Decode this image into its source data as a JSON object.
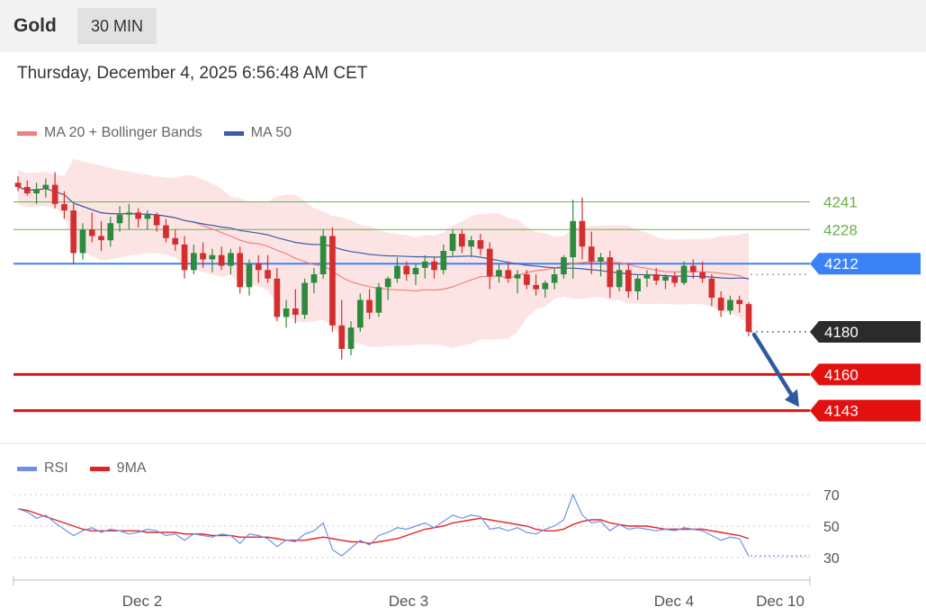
{
  "header": {
    "instrument": "Gold",
    "timeframe": "30 MIN",
    "datetime": "Thursday, December 4, 2025 6:56:48 AM CET"
  },
  "legend_main": [
    {
      "label": "MA 20 + Bollinger Bands",
      "color": "#f08080"
    },
    {
      "label": "MA 50",
      "color": "#3a5ea8"
    }
  ],
  "legend_rsi": [
    {
      "label": "RSI",
      "color": "#7090e8"
    },
    {
      "label": "9MA",
      "color": "#e52222"
    }
  ],
  "colors": {
    "bull": "#2e8b3e",
    "bear": "#d32f2f",
    "band_fill": "#fde4e4",
    "ma20": "#f08080",
    "ma50": "#3a5ea8",
    "resistance": "#6ab04c",
    "pivot": "#3b82f6",
    "support": "#e31010",
    "last_price": "#2b2b2b",
    "arrow": "#2e5b9e",
    "rsi": "#7090e8",
    "rsi_ma": "#e52222"
  },
  "chart_data": [
    {
      "type": "candlestick",
      "title": "",
      "x_labels": [
        "Dec 2",
        "Dec 3",
        "Dec 4",
        "Dec 10"
      ],
      "ylim": [
        4134,
        4264
      ],
      "levels": [
        {
          "value": 4241,
          "label": "4241",
          "kind": "resistance"
        },
        {
          "value": 4228,
          "label": "4228",
          "kind": "resistance"
        },
        {
          "value": 4212,
          "label": "4212",
          "kind": "pivot"
        },
        {
          "value": 4180,
          "label": "4180",
          "kind": "last_price"
        },
        {
          "value": 4160,
          "label": "4160",
          "kind": "support"
        },
        {
          "value": 4143,
          "label": "4143",
          "kind": "support"
        }
      ],
      "forecast_arrow": {
        "from": 4180,
        "to": 4143
      },
      "ohlc": [
        [
          4250,
          4253,
          4246,
          4248
        ],
        [
          4248,
          4251,
          4244,
          4245
        ],
        [
          4245,
          4250,
          4240,
          4247
        ],
        [
          4247,
          4252,
          4243,
          4249
        ],
        [
          4249,
          4255,
          4238,
          4240
        ],
        [
          4240,
          4246,
          4233,
          4237
        ],
        [
          4237,
          4240,
          4212,
          4217
        ],
        [
          4217,
          4231,
          4214,
          4228
        ],
        [
          4228,
          4236,
          4222,
          4225
        ],
        [
          4225,
          4232,
          4218,
          4223
        ],
        [
          4223,
          4234,
          4220,
          4231
        ],
        [
          4231,
          4239,
          4227,
          4235
        ],
        [
          4235,
          4240,
          4228,
          4236
        ],
        [
          4236,
          4238,
          4229,
          4233
        ],
        [
          4233,
          4237,
          4228,
          4235
        ],
        [
          4235,
          4236,
          4227,
          4230
        ],
        [
          4230,
          4233,
          4222,
          4224
        ],
        [
          4224,
          4228,
          4218,
          4221
        ],
        [
          4221,
          4225,
          4205,
          4209
        ],
        [
          4209,
          4221,
          4207,
          4217
        ],
        [
          4217,
          4222,
          4210,
          4214
        ],
        [
          4214,
          4219,
          4208,
          4216
        ],
        [
          4216,
          4220,
          4209,
          4211
        ],
        [
          4211,
          4219,
          4207,
          4217
        ],
        [
          4217,
          4220,
          4198,
          4201
        ],
        [
          4201,
          4214,
          4197,
          4212
        ],
        [
          4212,
          4216,
          4203,
          4209
        ],
        [
          4209,
          4216,
          4203,
          4205
        ],
        [
          4205,
          4210,
          4185,
          4187
        ],
        [
          4187,
          4195,
          4182,
          4191
        ],
        [
          4191,
          4200,
          4184,
          4188
        ],
        [
          4188,
          4205,
          4186,
          4203
        ],
        [
          4203,
          4210,
          4198,
          4207
        ],
        [
          4207,
          4228,
          4205,
          4225
        ],
        [
          4225,
          4229,
          4180,
          4183
        ],
        [
          4183,
          4195,
          4167,
          4172
        ],
        [
          4172,
          4185,
          4169,
          4182
        ],
        [
          4182,
          4198,
          4180,
          4195
        ],
        [
          4195,
          4200,
          4186,
          4189
        ],
        [
          4189,
          4203,
          4187,
          4201
        ],
        [
          4201,
          4206,
          4195,
          4205
        ],
        [
          4205,
          4215,
          4203,
          4211
        ],
        [
          4211,
          4213,
          4204,
          4207
        ],
        [
          4207,
          4212,
          4202,
          4210
        ],
        [
          4210,
          4216,
          4205,
          4213
        ],
        [
          4213,
          4215,
          4205,
          4209
        ],
        [
          4209,
          4221,
          4207,
          4218
        ],
        [
          4218,
          4228,
          4215,
          4226
        ],
        [
          4226,
          4228,
          4217,
          4220
        ],
        [
          4220,
          4225,
          4215,
          4223
        ],
        [
          4223,
          4226,
          4216,
          4219
        ],
        [
          4219,
          4222,
          4200,
          4206
        ],
        [
          4206,
          4212,
          4203,
          4209
        ],
        [
          4209,
          4213,
          4203,
          4205
        ],
        [
          4205,
          4209,
          4198,
          4207
        ],
        [
          4207,
          4209,
          4200,
          4202
        ],
        [
          4202,
          4207,
          4197,
          4200
        ],
        [
          4200,
          4204,
          4196,
          4203
        ],
        [
          4203,
          4210,
          4200,
          4207
        ],
        [
          4207,
          4216,
          4205,
          4215
        ],
        [
          4215,
          4242,
          4205,
          4232
        ],
        [
          4232,
          4243,
          4214,
          4220
        ],
        [
          4220,
          4227,
          4207,
          4213
        ],
        [
          4213,
          4217,
          4206,
          4215
        ],
        [
          4215,
          4218,
          4196,
          4201
        ],
        [
          4201,
          4212,
          4199,
          4209
        ],
        [
          4209,
          4212,
          4196,
          4199
        ],
        [
          4199,
          4207,
          4195,
          4205
        ],
        [
          4205,
          4209,
          4201,
          4207
        ],
        [
          4207,
          4210,
          4202,
          4204
        ],
        [
          4204,
          4207,
          4200,
          4206
        ],
        [
          4206,
          4208,
          4201,
          4203
        ],
        [
          4203,
          4213,
          4202,
          4211
        ],
        [
          4211,
          4214,
          4205,
          4208
        ],
        [
          4208,
          4213,
          4203,
          4205
        ],
        [
          4205,
          4207,
          4192,
          4196
        ],
        [
          4196,
          4199,
          4187,
          4190
        ],
        [
          4190,
          4197,
          4188,
          4195
        ],
        [
          4195,
          4197,
          4189,
          4193
        ],
        [
          4193,
          4194,
          4178,
          4180
        ]
      ]
    },
    {
      "type": "line",
      "title": "",
      "ylim": [
        22,
        78
      ],
      "ticks": [
        70,
        50,
        30
      ],
      "series": [
        {
          "name": "RSI",
          "values": [
            61,
            59,
            55,
            57,
            52,
            48,
            44,
            47,
            49,
            46,
            48,
            47,
            45,
            46,
            48,
            47,
            44,
            45,
            41,
            45,
            44,
            43,
            45,
            44,
            39,
            45,
            44,
            42,
            37,
            41,
            40,
            45,
            47,
            52,
            35,
            31,
            36,
            41,
            38,
            44,
            46,
            49,
            48,
            50,
            52,
            49,
            53,
            57,
            55,
            57,
            56,
            48,
            49,
            47,
            49,
            46,
            45,
            48,
            50,
            54,
            70,
            57,
            52,
            53,
            47,
            51,
            48,
            49,
            48,
            47,
            48,
            47,
            49,
            48,
            47,
            44,
            41,
            43,
            42,
            31
          ]
        },
        {
          "name": "9MA",
          "values": [
            61,
            60,
            58,
            56,
            54,
            52,
            50,
            48,
            47,
            47,
            47,
            47,
            47,
            47,
            46,
            46,
            46,
            46,
            45,
            45,
            45,
            44,
            44,
            44,
            43,
            43,
            43,
            43,
            42,
            41,
            41,
            41,
            42,
            43,
            42,
            41,
            40,
            40,
            39,
            40,
            41,
            42,
            44,
            46,
            48,
            49,
            50,
            52,
            53,
            54,
            55,
            54,
            53,
            52,
            51,
            50,
            48,
            47,
            47,
            48,
            51,
            53,
            54,
            54,
            52,
            51,
            50,
            50,
            50,
            49,
            48,
            48,
            48,
            48,
            48,
            47,
            46,
            45,
            44,
            42
          ]
        }
      ]
    }
  ]
}
